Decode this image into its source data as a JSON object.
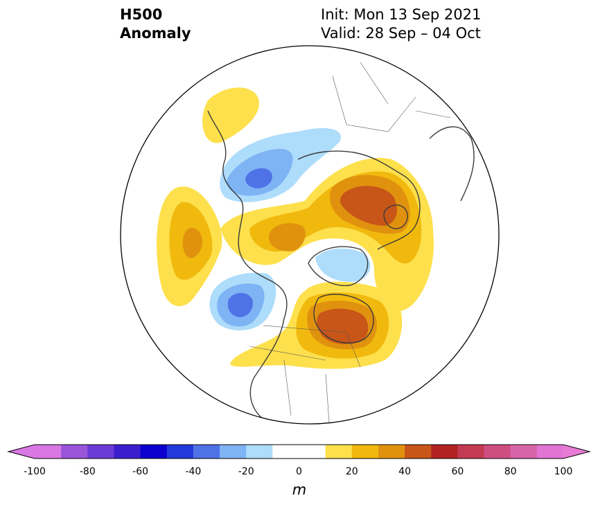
{
  "title": {
    "variable": "H500",
    "kind": "Anomaly",
    "init": "Init: Mon 13 Sep 2021",
    "valid": "Valid: 28 Sep – 04 Oct"
  },
  "colorbar": {
    "unit": "m",
    "ticks": [
      "-100",
      "-80",
      "-60",
      "-40",
      "-20",
      "0",
      "20",
      "40",
      "60",
      "80",
      "100"
    ],
    "levels": [
      -100,
      -90,
      -80,
      -70,
      -60,
      -50,
      -40,
      -30,
      -20,
      -10,
      10,
      20,
      30,
      40,
      50,
      60,
      70,
      80,
      90,
      100
    ],
    "colors": [
      "#d977e3",
      "#9b55db",
      "#6a3bd6",
      "#3b1fcf",
      "#0b00cd",
      "#2439d9",
      "#4f72e6",
      "#7eb3f4",
      "#aedcfb",
      "#ffffff",
      "#ffffff",
      "#fde04c",
      "#f1b90e",
      "#e0920f",
      "#c75618",
      "#b12323",
      "#c33b52",
      "#cf4e82",
      "#d864a8",
      "#e274d3"
    ],
    "extend_low": "#d977e3",
    "extend_high": "#e77bd6"
  },
  "map": {
    "projection": "north polar stereographic",
    "region": "Northern Hemisphere",
    "anomaly_features": [
      {
        "area": "Scandinavia / Barents Sea",
        "sign": "positive",
        "peak_m": 45
      },
      {
        "area": "Central Siberia",
        "sign": "negative",
        "peak_m": -40
      },
      {
        "area": "North Pacific",
        "sign": "positive",
        "peak_m": 35
      },
      {
        "area": "Gulf of Alaska",
        "sign": "negative",
        "peak_m": -45
      },
      {
        "area": "Eastern Canada / Hudson Bay",
        "sign": "positive",
        "peak_m": 50
      },
      {
        "area": "Arctic Ocean / Laptev Sea",
        "sign": "positive",
        "peak_m": 35
      },
      {
        "area": "Greenland",
        "sign": "negative",
        "peak_m": -20
      }
    ]
  }
}
